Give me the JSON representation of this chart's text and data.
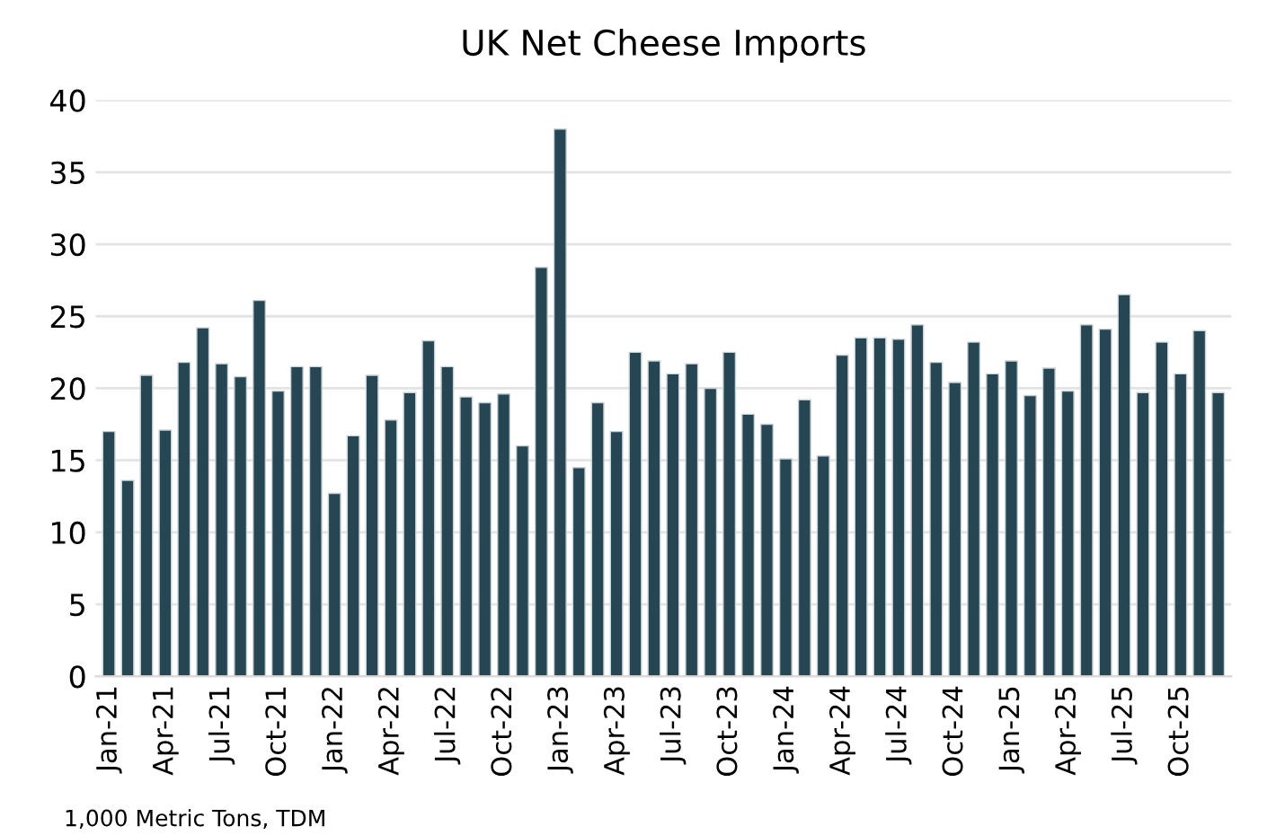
{
  "chart_data": {
    "type": "bar",
    "title": "UK Net Cheese Imports",
    "categories": [
      "Jan-21",
      null,
      null,
      "Apr-21",
      null,
      null,
      "Jul-21",
      null,
      null,
      "Oct-21",
      null,
      null,
      "Jan-22",
      null,
      null,
      "Apr-22",
      null,
      null,
      "Jul-22",
      null,
      null,
      "Oct-22",
      null,
      null,
      "Jan-23",
      null,
      null,
      "Apr-23",
      null,
      null,
      "Jul-23",
      null,
      null,
      "Oct-23",
      null,
      null,
      "Jan-24",
      null,
      null,
      "Apr-24",
      null,
      null,
      "Jul-24",
      null,
      null,
      "Oct-24",
      null,
      null,
      "Jan-25",
      null,
      null,
      "Apr-25",
      null,
      null,
      "Jul-25",
      null,
      null,
      "Oct-25",
      null,
      null
    ],
    "values": [
      17.0,
      13.6,
      20.9,
      17.1,
      21.8,
      24.2,
      21.7,
      20.8,
      26.1,
      19.8,
      21.5,
      21.5,
      12.7,
      16.7,
      20.9,
      17.8,
      19.7,
      23.3,
      21.5,
      19.4,
      19.0,
      19.6,
      16.0,
      28.4,
      38.0,
      14.5,
      19.0,
      17.0,
      22.5,
      21.9,
      21.0,
      21.7,
      20.0,
      22.5,
      18.2,
      17.5,
      15.1,
      19.2,
      15.3,
      22.3,
      23.5,
      23.5,
      23.4,
      24.4,
      21.8,
      20.4,
      23.2,
      21.0,
      21.9,
      19.5,
      21.4,
      19.8,
      24.4,
      24.1,
      26.5,
      19.7,
      23.2,
      21.0,
      24.0,
      19.7
    ],
    "color": "#264653",
    "ylim": [
      0,
      40
    ],
    "yticks": [
      0,
      5,
      10,
      15,
      20,
      25,
      30,
      35,
      40
    ],
    "grid": "y",
    "annotations": [
      "1,000 Metric Tons, TDM"
    ]
  }
}
